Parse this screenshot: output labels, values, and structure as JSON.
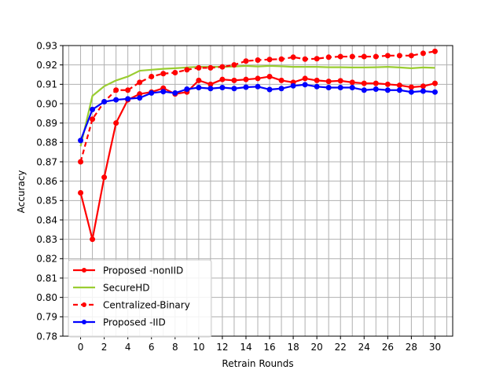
{
  "chart_data": {
    "type": "line",
    "title": "",
    "xlabel": "Retrain Rounds",
    "ylabel": "Accuracy",
    "xlim": [
      -1.5,
      31.5
    ],
    "ylim": [
      0.78,
      0.93
    ],
    "xticks": [
      0,
      2,
      4,
      6,
      8,
      10,
      12,
      14,
      16,
      18,
      20,
      22,
      24,
      26,
      28,
      30
    ],
    "yticks": [
      0.78,
      0.79,
      0.8,
      0.81,
      0.82,
      0.83,
      0.84,
      0.85,
      0.86,
      0.87,
      0.88,
      0.89,
      0.9,
      0.91,
      0.92,
      0.93
    ],
    "grid": true,
    "grid_step_x": 1,
    "legend_placement": "lower-left",
    "x": [
      0,
      1,
      2,
      3,
      4,
      5,
      6,
      7,
      8,
      9,
      10,
      11,
      12,
      13,
      14,
      15,
      16,
      17,
      18,
      19,
      20,
      21,
      22,
      23,
      24,
      25,
      26,
      27,
      28,
      29,
      30
    ],
    "series": [
      {
        "name": "Proposed -nonIID",
        "color": "#ff0000",
        "style": "solid",
        "marker": "circle",
        "values": [
          0.854,
          0.83,
          0.862,
          0.89,
          0.902,
          0.905,
          0.906,
          0.908,
          0.905,
          0.906,
          0.912,
          0.91,
          0.9125,
          0.912,
          0.9125,
          0.913,
          0.914,
          0.912,
          0.911,
          0.913,
          0.912,
          0.9115,
          0.9118,
          0.911,
          0.9105,
          0.9105,
          0.91,
          0.9095,
          0.9085,
          0.909,
          0.9105
        ]
      },
      {
        "name": "SecureHD",
        "color": "#9acd32",
        "style": "solid",
        "marker": "none",
        "values": [
          0.878,
          0.904,
          0.909,
          0.912,
          0.914,
          0.917,
          0.9175,
          0.918,
          0.9183,
          0.9187,
          0.919,
          0.919,
          0.919,
          0.9192,
          0.9195,
          0.9192,
          0.9195,
          0.9193,
          0.919,
          0.919,
          0.919,
          0.9188,
          0.9188,
          0.9187,
          0.9187,
          0.9188,
          0.919,
          0.9187,
          0.9183,
          0.9187,
          0.9185
        ]
      },
      {
        "name": "Centralized-Binary",
        "color": "#ff0000",
        "style": "dashed",
        "marker": "circle",
        "values": [
          0.87,
          0.892,
          0.901,
          0.907,
          0.907,
          0.911,
          0.914,
          0.9155,
          0.916,
          0.9175,
          0.9185,
          0.9185,
          0.919,
          0.92,
          0.922,
          0.9225,
          0.9228,
          0.923,
          0.924,
          0.923,
          0.9232,
          0.924,
          0.9243,
          0.9243,
          0.9243,
          0.9243,
          0.9248,
          0.9248,
          0.9248,
          0.926,
          0.927
        ]
      },
      {
        "name": "Proposed -IID",
        "color": "#0000ff",
        "style": "solid",
        "marker": "circle",
        "values": [
          0.881,
          0.897,
          0.901,
          0.902,
          0.9025,
          0.903,
          0.9055,
          0.9062,
          0.9055,
          0.9075,
          0.9083,
          0.9078,
          0.9083,
          0.9078,
          0.9085,
          0.9088,
          0.9073,
          0.9078,
          0.9092,
          0.9098,
          0.9088,
          0.9083,
          0.9083,
          0.9083,
          0.907,
          0.9075,
          0.907,
          0.907,
          0.906,
          0.9065,
          0.906
        ]
      }
    ]
  }
}
